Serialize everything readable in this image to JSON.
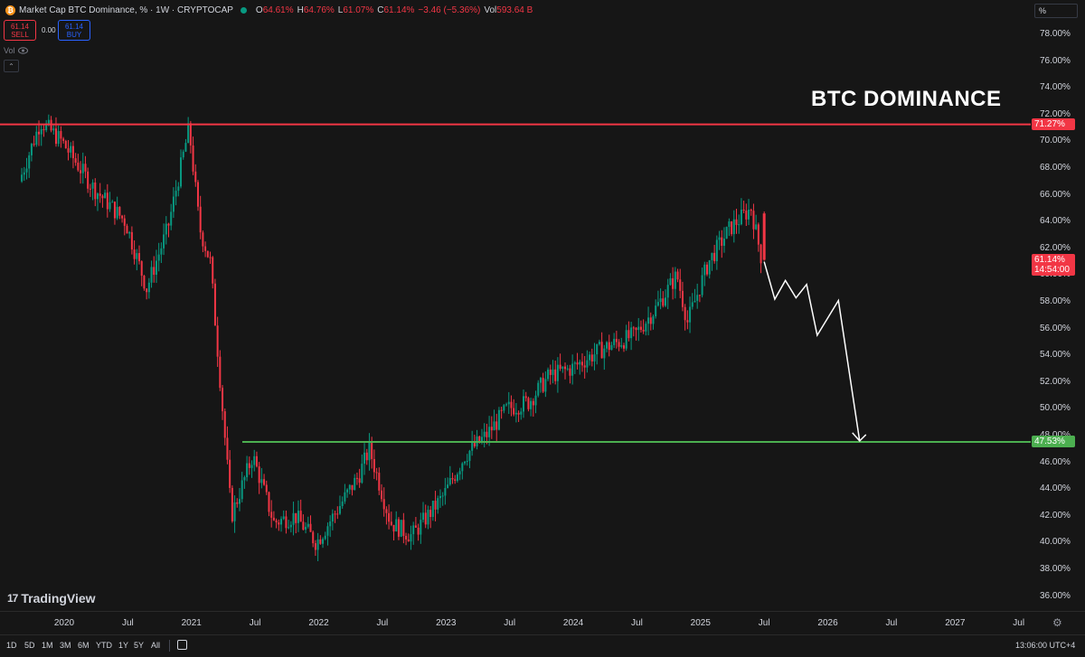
{
  "legend": {
    "symbol_title": "Market Cap BTC Dominance, % · 1W · CRYPTOCAP",
    "ohlc": [
      {
        "k": "O",
        "v": "64.61%"
      },
      {
        "k": "H",
        "v": "64.76%"
      },
      {
        "k": "L",
        "v": "61.07%"
      },
      {
        "k": "C",
        "v": "61.14%"
      },
      {
        "k": "",
        "v": "−3.46 (−5.36%)"
      },
      {
        "k": "Vol",
        "v": "593.64 B"
      }
    ],
    "sell_price": "61.14",
    "sell_label": "SELL",
    "spread": "0.00",
    "buy_price": "61.14",
    "buy_label": "BUY",
    "vol_label": "Vol",
    "collapse_glyph": "⌃"
  },
  "overlay_title": "BTC DOMINANCE",
  "scale_mode": "%",
  "price_ticks": [
    "78.00%",
    "76.00%",
    "74.00%",
    "72.00%",
    "70.00%",
    "68.00%",
    "66.00%",
    "64.00%",
    "62.00%",
    "60.00%",
    "58.00%",
    "56.00%",
    "54.00%",
    "52.00%",
    "50.00%",
    "48.00%",
    "46.00%",
    "44.00%",
    "42.00%",
    "40.00%",
    "38.00%",
    "36.00%"
  ],
  "price_labels": {
    "resistance": "71.27%",
    "current": "61.14%",
    "countdown": "14:54:00",
    "support": "47.53%"
  },
  "time_labels": [
    "2020",
    "Jul",
    "2021",
    "Jul",
    "2022",
    "Jul",
    "2023",
    "Jul",
    "2024",
    "Jul",
    "2025",
    "Jul",
    "2026",
    "Jul",
    "2027",
    "Jul"
  ],
  "ranges": [
    "1D",
    "5D",
    "1M",
    "3M",
    "6M",
    "YTD",
    "1Y",
    "5Y",
    "All"
  ],
  "clock": "13:06:00 UTC+4",
  "logo_text": "TradingView",
  "logo_mark": "17",
  "colors": {
    "background": "#161616",
    "up": "#089981",
    "down": "#f23645",
    "resistance_line": "#f23645",
    "support_line": "#4caf50",
    "projection": "#ffffff"
  },
  "chart_data": {
    "type": "candlestick",
    "title": "Market Cap BTC Dominance, % · 1W · CRYPTOCAP",
    "y_unit": "%",
    "ylim": [
      35.0,
      79.5
    ],
    "x_range": [
      "2019-09",
      "2027-10"
    ],
    "horizontal_lines": [
      {
        "name": "resistance",
        "value": 71.27,
        "color": "#f23645"
      },
      {
        "name": "support",
        "value": 47.53,
        "color": "#4caf50"
      }
    ],
    "last_candle": {
      "open": 64.61,
      "high": 64.76,
      "low": 61.07,
      "close": 61.14
    },
    "trend_path_approx": [
      [
        "2019-09",
        67.0
      ],
      [
        "2019-11",
        71.5
      ],
      [
        "2020-01",
        70.0
      ],
      [
        "2020-04",
        66.5
      ],
      [
        "2020-07",
        64.0
      ],
      [
        "2020-09",
        59.0
      ],
      [
        "2020-11",
        63.5
      ],
      [
        "2021-01",
        71.0
      ],
      [
        "2021-02",
        63.5
      ],
      [
        "2021-03",
        61.0
      ],
      [
        "2021-05",
        42.0
      ],
      [
        "2021-07",
        46.5
      ],
      [
        "2021-09",
        41.5
      ],
      [
        "2021-11",
        42.0
      ],
      [
        "2022-01",
        40.0
      ],
      [
        "2022-03",
        42.5
      ],
      [
        "2022-05",
        45.0
      ],
      [
        "2022-06",
        47.0
      ],
      [
        "2022-08",
        41.5
      ],
      [
        "2022-10",
        40.5
      ],
      [
        "2023-01",
        43.5
      ],
      [
        "2023-03",
        46.5
      ],
      [
        "2023-05",
        48.0
      ],
      [
        "2023-07",
        50.0
      ],
      [
        "2023-09",
        50.5
      ],
      [
        "2023-11",
        52.5
      ],
      [
        "2024-01",
        53.0
      ],
      [
        "2024-04",
        54.5
      ],
      [
        "2024-07",
        55.5
      ],
      [
        "2024-09",
        57.5
      ],
      [
        "2024-11",
        60.0
      ],
      [
        "2024-12",
        56.5
      ],
      [
        "2025-02",
        61.0
      ],
      [
        "2025-04",
        63.5
      ],
      [
        "2025-06",
        65.0
      ],
      [
        "2025-07",
        61.14
      ]
    ],
    "projection_path": [
      [
        "2025-07",
        61.0
      ],
      [
        "2025-08",
        58.2
      ],
      [
        "2025-09",
        59.6
      ],
      [
        "2025-10",
        58.3
      ],
      [
        "2025-11",
        59.3
      ],
      [
        "2025-12",
        55.5
      ],
      [
        "2026-02",
        58.1
      ],
      [
        "2026-04",
        47.6
      ]
    ]
  }
}
